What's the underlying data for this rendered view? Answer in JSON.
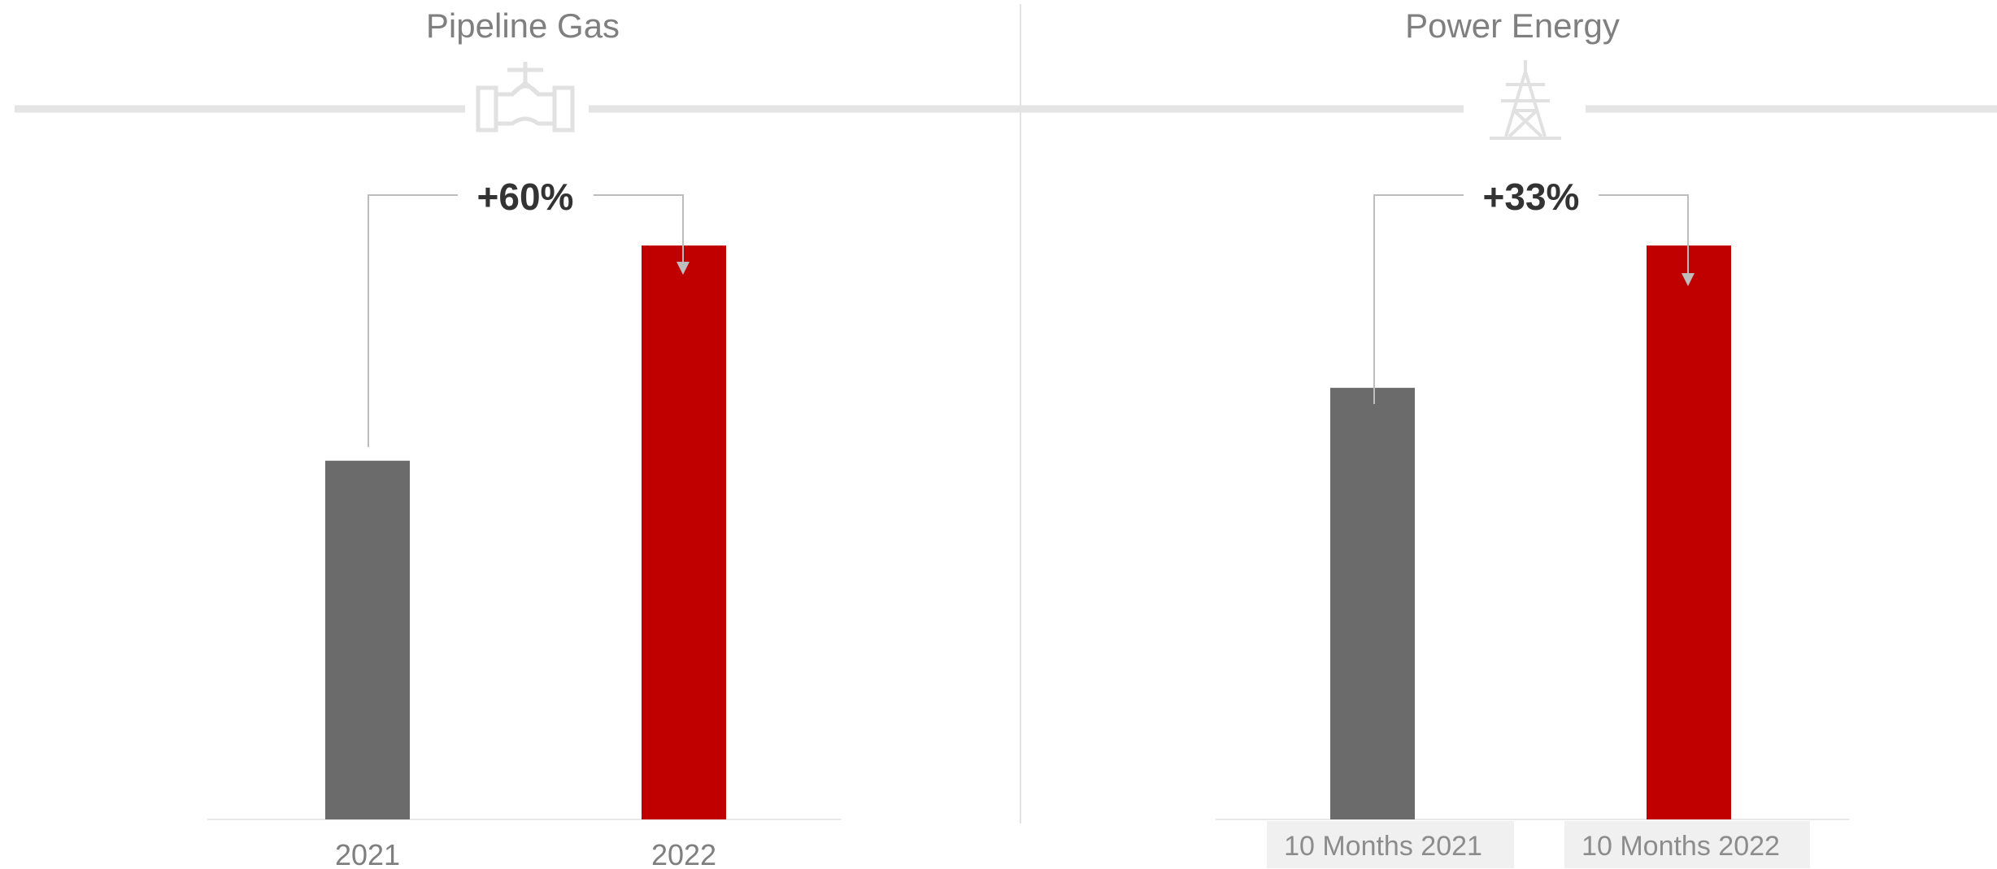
{
  "colors": {
    "bar_previous": "#6b6b6b",
    "bar_current": "#c00000",
    "divider": "#e4e4e4",
    "icon": "#e1e1e1",
    "connector": "#bdbdbd",
    "tick_box": "#f0f0f0"
  },
  "chart_data": [
    {
      "type": "bar",
      "title": "Pipeline Gas",
      "icon": "pipeline-valve-icon",
      "categories": [
        "2021",
        "2022"
      ],
      "values": [
        62.5,
        100
      ],
      "value_note": "relative index, no axis printed",
      "ylim": [
        0,
        110
      ],
      "change_label": "+60%",
      "grid": false,
      "legend": "none"
    },
    {
      "type": "bar",
      "title": "Power Energy",
      "icon": "power-tower-icon",
      "categories": [
        "10 Months 2021",
        "10 Months 2022"
      ],
      "values": [
        75.2,
        100
      ],
      "value_note": "relative index, no axis printed",
      "ylim": [
        0,
        110
      ],
      "change_label": "+33%",
      "grid": false,
      "legend": "none"
    }
  ]
}
